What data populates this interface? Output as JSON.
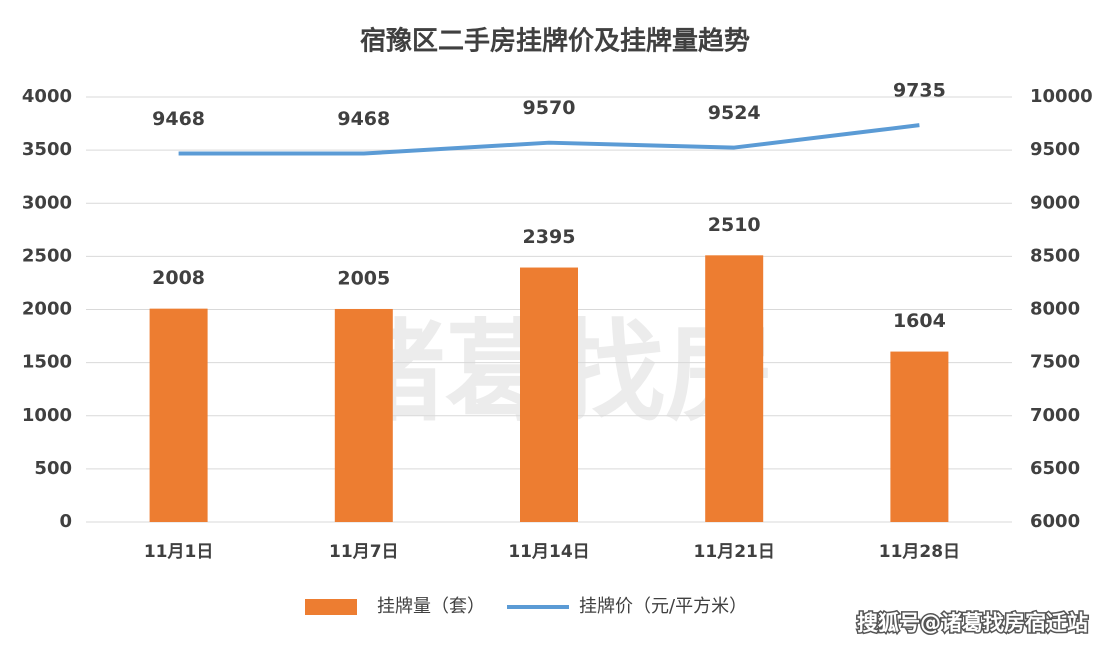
{
  "chart_data": {
    "type": "bar",
    "title": "宿豫区二手房挂牌价及挂牌量趋势",
    "categories": [
      "11月1日",
      "11月7日",
      "11月14日",
      "11月21日",
      "11月28日"
    ],
    "series": [
      {
        "name": "挂牌量（套）",
        "type": "bar",
        "color": "#ed7d31",
        "values": [
          2008,
          2005,
          2395,
          2510,
          1604
        ]
      },
      {
        "name": "挂牌价（元/平方米）",
        "type": "line",
        "axis": "y2",
        "color": "#5b9bd5",
        "values": [
          9468,
          9468,
          9570,
          9524,
          9735
        ]
      }
    ],
    "ylim": [
      0,
      4000
    ],
    "yticks": [
      0,
      500,
      1000,
      1500,
      2000,
      2500,
      3000,
      3500,
      4000
    ],
    "y2lim": [
      6000,
      10000
    ],
    "y2ticks": [
      6000,
      6500,
      7000,
      7500,
      8000,
      8500,
      9000,
      9500,
      10000
    ],
    "grid": true,
    "legend": "bottom",
    "watermark": "诸葛找房",
    "source": "搜狐号@诸葛找房宿迁站"
  }
}
